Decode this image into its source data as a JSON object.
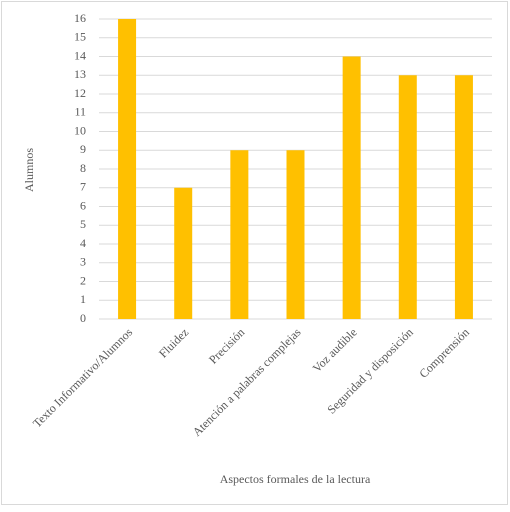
{
  "chart_data": {
    "type": "bar",
    "categories": [
      "Texto Informativo/Alumnos",
      "Fluidez",
      "Precisión",
      "Atención a palabras complejas",
      "Voz audible",
      "Seguridad y disposición",
      "Comprensión"
    ],
    "values": [
      16,
      7,
      9,
      9,
      14,
      13,
      13
    ],
    "color": "#ffc000",
    "ylim": [
      0,
      16
    ],
    "yticks": [
      0,
      1,
      2,
      3,
      4,
      5,
      6,
      7,
      8,
      9,
      10,
      11,
      12,
      13,
      14,
      15,
      16
    ],
    "grid": true,
    "ylabel": "Alumnos",
    "xlabel": "Aspectos formales de la lectura"
  }
}
